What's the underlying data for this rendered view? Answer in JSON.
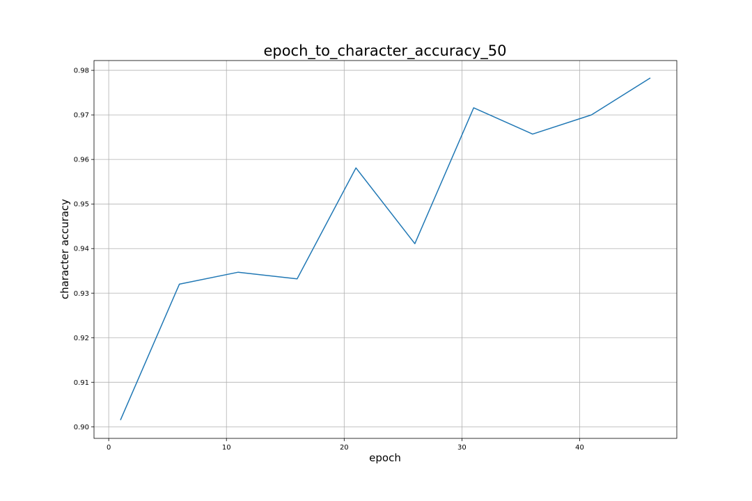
{
  "chart_data": {
    "type": "line",
    "title": "epoch_to_character_accuracy_50",
    "xlabel": "epoch",
    "ylabel": "character accuracy",
    "xlim": [
      -1.25,
      48.25
    ],
    "ylim": [
      0.8974,
      0.9822
    ],
    "xticks": [
      0,
      10,
      20,
      30,
      40
    ],
    "yticks": [
      0.9,
      0.91,
      0.92,
      0.93,
      0.94,
      0.95,
      0.96,
      0.97,
      0.98
    ],
    "grid": true,
    "series": [
      {
        "color": "#1f77b4",
        "x": [
          1,
          6,
          11,
          16,
          21,
          26,
          31,
          36,
          41,
          46
        ],
        "y": [
          0.9015,
          0.932,
          0.9347,
          0.9332,
          0.9581,
          0.9411,
          0.9716,
          0.9657,
          0.97,
          0.9783
        ]
      }
    ]
  }
}
